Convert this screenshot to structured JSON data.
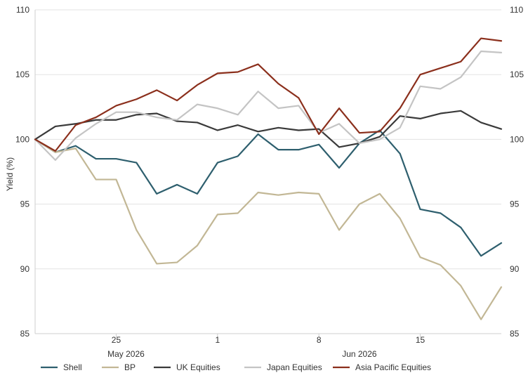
{
  "chart_data": {
    "type": "line",
    "title": "",
    "xlabel": "",
    "ylabel": "Yield (%)",
    "ylim": [
      85,
      110
    ],
    "yticks": [
      85,
      90,
      95,
      100,
      105,
      110
    ],
    "grid": "horizontal",
    "legend_position": "bottom",
    "x_tick_labels": [
      "25",
      "1",
      "8",
      "15"
    ],
    "x_month_labels": [
      "May 2026",
      "Jun 2026"
    ],
    "colors": {
      "Shell": "#2e5f6e",
      "BP": "#c2b795",
      "UK Equities": "#3a3a3a",
      "Japan Equities": "#c4c4c4",
      "Asia Pacific Equities": "#8b2f1c"
    },
    "series": [
      {
        "name": "Shell",
        "values": [
          100.0,
          99.0,
          99.5,
          98.5,
          98.5,
          98.2,
          95.8,
          96.5,
          95.8,
          98.2,
          98.7,
          100.4,
          99.2,
          99.2,
          99.6,
          97.8,
          99.7,
          100.7,
          98.9,
          94.6,
          94.3,
          93.2,
          91.0,
          92.0
        ]
      },
      {
        "name": "BP",
        "values": [
          100.0,
          99.0,
          99.3,
          96.9,
          96.9,
          93.0,
          90.4,
          90.5,
          91.8,
          94.2,
          94.3,
          95.9,
          95.7,
          95.9,
          95.8,
          93.0,
          95.0,
          95.8,
          93.9,
          90.9,
          90.3,
          88.7,
          86.1,
          88.6
        ]
      },
      {
        "name": "UK Equities",
        "values": [
          100.0,
          101.0,
          101.2,
          101.5,
          101.5,
          101.9,
          102.0,
          101.4,
          101.3,
          100.7,
          101.1,
          100.6,
          100.9,
          100.7,
          100.8,
          99.4,
          99.7,
          100.2,
          101.8,
          101.6,
          102.0,
          102.2,
          101.3,
          100.8
        ]
      },
      {
        "name": "Japan Equities",
        "values": [
          100.0,
          98.4,
          100.1,
          101.2,
          102.1,
          102.1,
          101.7,
          101.5,
          102.7,
          102.4,
          101.9,
          103.7,
          102.4,
          102.6,
          100.5,
          101.2,
          99.7,
          100.0,
          100.9,
          104.1,
          103.9,
          104.8,
          106.8,
          106.7
        ]
      },
      {
        "name": "Asia Pacific Equities",
        "values": [
          100.0,
          99.1,
          101.1,
          101.7,
          102.6,
          103.1,
          103.8,
          103.0,
          104.2,
          105.1,
          105.2,
          105.8,
          104.3,
          103.2,
          100.4,
          102.4,
          100.5,
          100.6,
          102.4,
          105.0,
          105.5,
          106.0,
          107.8,
          107.6
        ]
      }
    ]
  }
}
